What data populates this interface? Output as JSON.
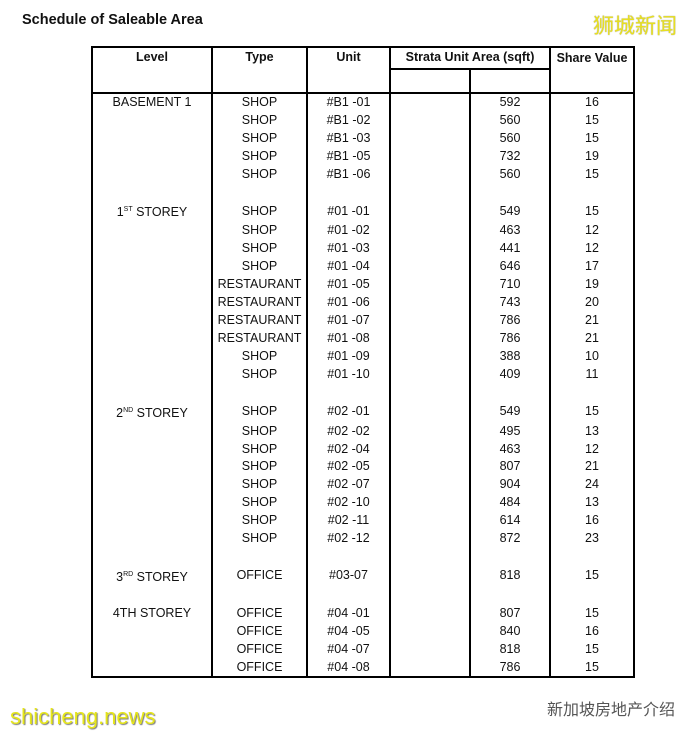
{
  "title": "Schedule of Saleable Area",
  "watermark_top": "狮城新闻",
  "watermark_bottom_left": "shicheng.news",
  "watermark_bottom_right": "新加坡房地产介绍",
  "headers": {
    "level": "Level",
    "type": "Type",
    "unit": "Unit",
    "area": "Strata Unit Area (sqft)",
    "share": "Share Value"
  },
  "groups": [
    {
      "level": "BASEMENT 1",
      "level_base": "",
      "level_sup": "",
      "rows": [
        [
          "SHOP",
          "#B1 -01",
          "592",
          "16"
        ],
        [
          "SHOP",
          "#B1 -02",
          "560",
          "15"
        ],
        [
          "SHOP",
          "#B1 -03",
          "560",
          "15"
        ],
        [
          "SHOP",
          "#B1 -05",
          "732",
          "19"
        ],
        [
          "SHOP",
          "#B1 -06",
          "560",
          "15"
        ]
      ]
    },
    {
      "level": "",
      "level_base": "1",
      "level_sup": "ST",
      "level_rest": " STOREY",
      "rows": [
        [
          "SHOP",
          "#01 -01",
          "549",
          "15"
        ],
        [
          "SHOP",
          "#01 -02",
          "463",
          "12"
        ],
        [
          "SHOP",
          "#01 -03",
          "441",
          "12"
        ],
        [
          "SHOP",
          "#01 -04",
          "646",
          "17"
        ],
        [
          "RESTAURANT",
          "#01 -05",
          "710",
          "19"
        ],
        [
          "RESTAURANT",
          "#01 -06",
          "743",
          "20"
        ],
        [
          "RESTAURANT",
          "#01 -07",
          "786",
          "21"
        ],
        [
          "RESTAURANT",
          "#01 -08",
          "786",
          "21"
        ],
        [
          "SHOP",
          "#01 -09",
          "388",
          "10"
        ],
        [
          "SHOP",
          "#01 -10",
          "409",
          "11"
        ]
      ]
    },
    {
      "level": "",
      "level_base": "2",
      "level_sup": "ND",
      "level_rest": " STOREY",
      "rows": [
        [
          "SHOP",
          "#02 -01",
          "549",
          "15"
        ],
        [
          "SHOP",
          "#02 -02",
          "495",
          "13"
        ],
        [
          "SHOP",
          "#02 -04",
          "463",
          "12"
        ],
        [
          "SHOP",
          "#02 -05",
          "807",
          "21"
        ],
        [
          "SHOP",
          "#02 -07",
          "904",
          "24"
        ],
        [
          "SHOP",
          "#02 -10",
          "484",
          "13"
        ],
        [
          "SHOP",
          "#02 -11",
          "614",
          "16"
        ],
        [
          "SHOP",
          "#02 -12",
          "872",
          "23"
        ]
      ]
    },
    {
      "level": "",
      "level_base": "3",
      "level_sup": "RD",
      "level_rest": " STOREY",
      "rows": [
        [
          "OFFICE",
          "#03-07",
          "818",
          "15"
        ]
      ]
    },
    {
      "level": "4TH STOREY",
      "level_base": "",
      "level_sup": "",
      "rows": [
        [
          "OFFICE",
          "#04 -01",
          "807",
          "15"
        ],
        [
          "OFFICE",
          "#04 -05",
          "840",
          "16"
        ],
        [
          "OFFICE",
          "#04 -07",
          "818",
          "15"
        ],
        [
          "OFFICE",
          "#04 -08",
          "786",
          "15"
        ]
      ]
    }
  ]
}
